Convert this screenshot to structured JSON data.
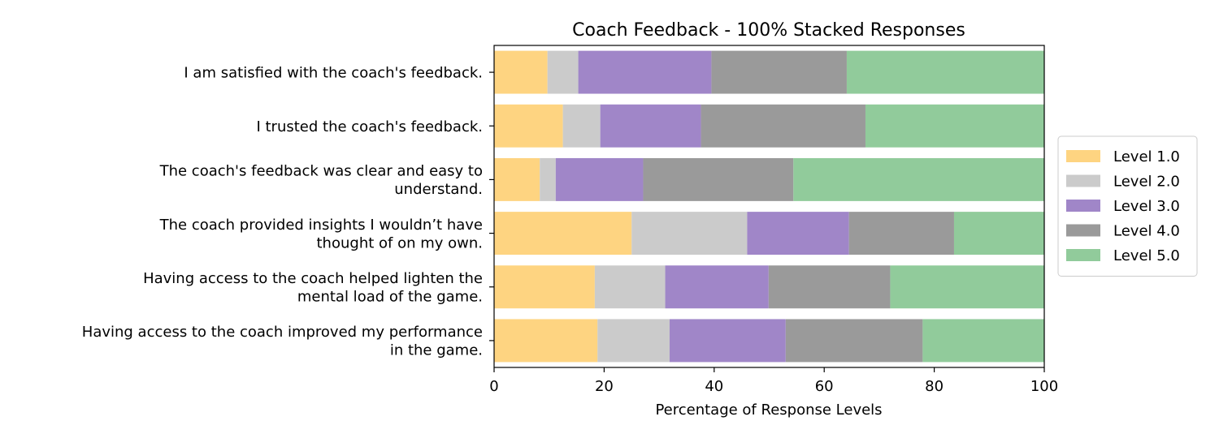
{
  "chart_data": {
    "type": "bar",
    "orientation": "horizontal",
    "stacked": "100%",
    "title": "Coach Feedback - 100% Stacked Responses",
    "xlabel": "Percentage of Response Levels",
    "ylabel": "",
    "xlim": [
      0,
      100
    ],
    "xticks": [
      0,
      20,
      40,
      60,
      80,
      100
    ],
    "xtick_labels": [
      "0",
      "20",
      "40",
      "60",
      "80",
      "100"
    ],
    "grid": false,
    "legend_position": "right",
    "categories": [
      [
        "I am satisfied with the coach's feedback."
      ],
      [
        "I trusted the coach's feedback."
      ],
      [
        "The coach's feedback was clear and easy to",
        "understand."
      ],
      [
        "The coach provided insights I wouldn’t have",
        "thought of on my own."
      ],
      [
        "Having access to the coach helped lighten the",
        "mental load of the game."
      ],
      [
        "Having access to the coach improved my performance",
        "in the game."
      ]
    ],
    "series": [
      {
        "name": "Level 1.0",
        "color": "#fed481",
        "values": [
          9.7,
          12.5,
          8.3,
          25.0,
          18.3,
          18.8
        ]
      },
      {
        "name": "Level 2.0",
        "color": "#cbcbcb",
        "values": [
          5.6,
          6.8,
          2.9,
          21.0,
          12.8,
          13.1
        ]
      },
      {
        "name": "Level 3.0",
        "color": "#a086c8",
        "values": [
          24.2,
          18.3,
          15.9,
          18.5,
          18.8,
          21.1
        ]
      },
      {
        "name": "Level 4.0",
        "color": "#9a9a9a",
        "values": [
          24.6,
          29.9,
          27.3,
          19.1,
          22.1,
          24.9
        ]
      },
      {
        "name": "Level 5.0",
        "color": "#91cb9b",
        "values": [
          35.9,
          32.5,
          45.6,
          16.4,
          28.0,
          22.1
        ]
      }
    ]
  }
}
